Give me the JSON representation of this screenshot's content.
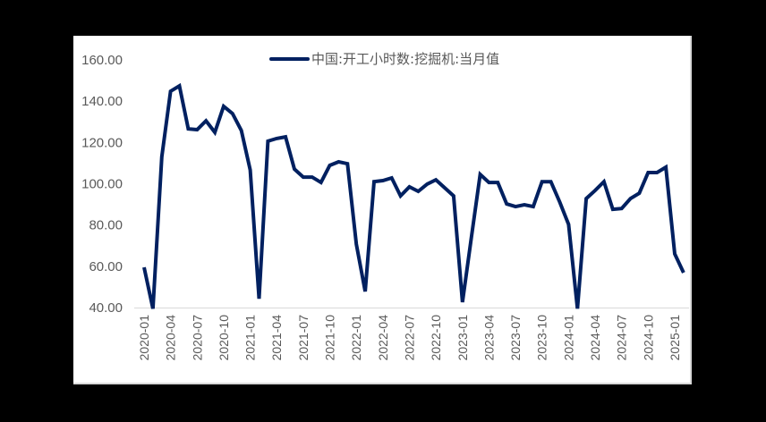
{
  "chart_data": {
    "type": "line",
    "title": "",
    "xlabel": "",
    "ylabel": "",
    "ylim": [
      40,
      160
    ],
    "yticks": [
      "160.00",
      "140.00",
      "120.00",
      "100.00",
      "80.00",
      "60.00",
      "40.00"
    ],
    "grid": false,
    "legend_position": "top",
    "x_tick_labels": [
      "2020-01",
      "2020-04",
      "2020-07",
      "2020-10",
      "2021-01",
      "2021-04",
      "2021-07",
      "2021-10",
      "2022-01",
      "2022-04",
      "2022-07",
      "2022-10",
      "2023-01",
      "2023-04",
      "2023-07",
      "2023-10",
      "2024-01",
      "2024-04",
      "2024-07",
      "2024-10",
      "2025-01"
    ],
    "x": [
      "2020-01",
      "2020-02",
      "2020-03",
      "2020-04",
      "2020-05",
      "2020-06",
      "2020-07",
      "2020-08",
      "2020-09",
      "2020-10",
      "2020-11",
      "2020-12",
      "2021-01",
      "2021-02",
      "2021-03",
      "2021-04",
      "2021-05",
      "2021-06",
      "2021-07",
      "2021-08",
      "2021-09",
      "2021-10",
      "2021-11",
      "2021-12",
      "2022-01",
      "2022-02",
      "2022-03",
      "2022-04",
      "2022-05",
      "2022-06",
      "2022-07",
      "2022-08",
      "2022-09",
      "2022-10",
      "2022-11",
      "2022-12",
      "2023-01",
      "2023-02",
      "2023-03",
      "2023-04",
      "2023-05",
      "2023-06",
      "2023-07",
      "2023-08",
      "2023-09",
      "2023-10",
      "2023-11",
      "2023-12",
      "2024-01",
      "2024-02",
      "2024-03",
      "2024-04",
      "2024-05",
      "2024-06",
      "2024-07",
      "2024-08",
      "2024-09",
      "2024-10",
      "2024-11",
      "2024-12",
      "2025-01",
      "2025-02"
    ],
    "series": [
      {
        "name": "中国:开工小时数:挖掘机:当月值",
        "color": "#002060",
        "values": [
          59.5,
          39.5,
          113.0,
          144.8,
          147.4,
          126.6,
          126.2,
          130.5,
          124.9,
          137.5,
          134.0,
          125.8,
          106.7,
          44.3,
          120.6,
          121.9,
          122.7,
          107.1,
          103.2,
          103.2,
          100.6,
          108.9,
          110.6,
          109.7,
          70.7,
          47.8,
          101.0,
          101.5,
          102.8,
          94.1,
          98.5,
          96.3,
          99.8,
          101.9,
          98.0,
          94.1,
          42.6,
          73.8,
          104.5,
          100.6,
          100.6,
          90.2,
          88.9,
          89.8,
          88.9,
          101.0,
          101.0,
          91.1,
          80.3,
          39.5,
          92.8,
          96.7,
          101.0,
          87.6,
          88.0,
          92.8,
          95.4,
          105.4,
          105.4,
          108.0,
          66.0,
          56.9
        ]
      }
    ]
  },
  "legend": {
    "label": "中国:开工小时数:挖掘机:当月值"
  }
}
